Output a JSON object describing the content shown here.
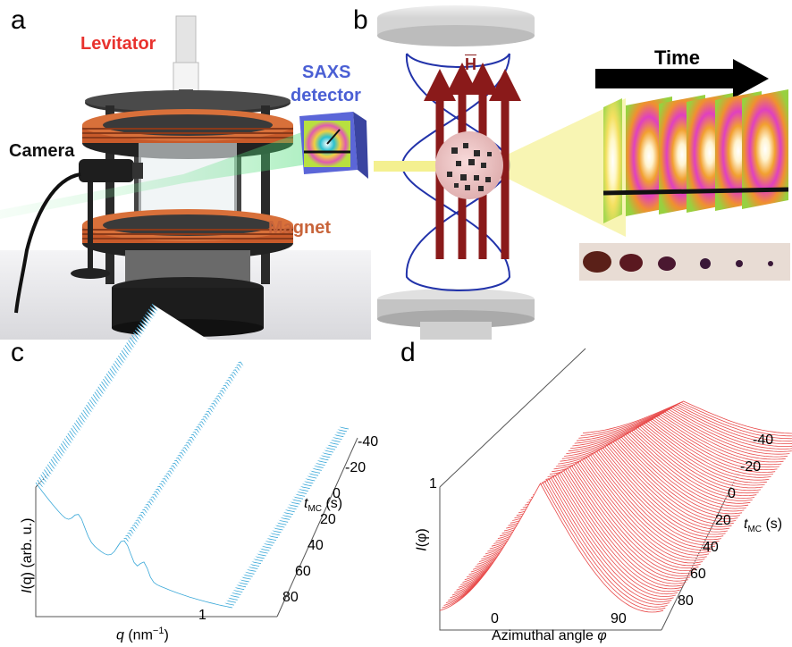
{
  "panels": {
    "a": {
      "letter": "a",
      "labels": {
        "levitator": "Levitator",
        "saxs_line1": "SAXS",
        "saxs_line2": "detector",
        "camera": "Camera",
        "magnet": "Magnet"
      }
    },
    "b": {
      "letter": "b",
      "labels": {
        "field_symbol": "H",
        "time": "Time"
      }
    },
    "c": {
      "letter": "c",
      "xlabel_var": "q",
      "xlabel_unit": " (nm",
      "xlabel_exp": "−1",
      "xlabel_close": ")",
      "ylabel_var": "I",
      "ylabel_rest": "(q) (arb. u.)",
      "x_tick": "1",
      "t_label_var": "t",
      "t_label_sub": "MC",
      "t_label_unit": " (s)",
      "t_ticks": [
        "-40",
        "-20",
        "0",
        "20",
        "40",
        "60",
        "80"
      ]
    },
    "d": {
      "letter": "d",
      "xlabel_text": "Azimuthal angle ",
      "xlabel_var": "φ",
      "ylabel_var": "I",
      "ylabel_rest": "(φ)",
      "y_tick": "1",
      "x_ticks": [
        "0",
        "90"
      ],
      "t_label_var": "t",
      "t_label_sub": "MC",
      "t_label_unit": " (s)",
      "t_ticks": [
        "-40",
        "-20",
        "0",
        "20",
        "40",
        "60",
        "80"
      ]
    }
  },
  "colors": {
    "levitator_label": "#e8322e",
    "saxs_label": "#4a5fd4",
    "magnet_label": "#c8643a",
    "plot_c": "#3aa8d8",
    "plot_d": "#e84a4a",
    "coil": "#c85a2a",
    "rod": "#8a1a1a",
    "field_lines": "#2233aa"
  },
  "chart_data": [
    {
      "type": "area",
      "title": "",
      "xlabel": "q (nm−1)",
      "ylabel": "I(q) (arb. u.)",
      "x_tick_labels": [
        "1"
      ],
      "depth_axis_label": "tMC (s)",
      "depth_ticks": [
        -40,
        -20,
        0,
        20,
        40,
        60,
        80
      ],
      "depth_range": [
        -45,
        90
      ]
    },
    {
      "type": "area",
      "title": "",
      "xlabel": "Azimuthal angle φ",
      "ylabel": "I(φ)",
      "x_tick_labels": [
        0,
        90
      ],
      "y_tick_labels": [
        1
      ],
      "depth_axis_label": "tMC (s)",
      "depth_ticks": [
        -40,
        -20,
        0,
        20,
        40,
        60,
        80
      ],
      "depth_range": [
        -45,
        90
      ]
    }
  ]
}
